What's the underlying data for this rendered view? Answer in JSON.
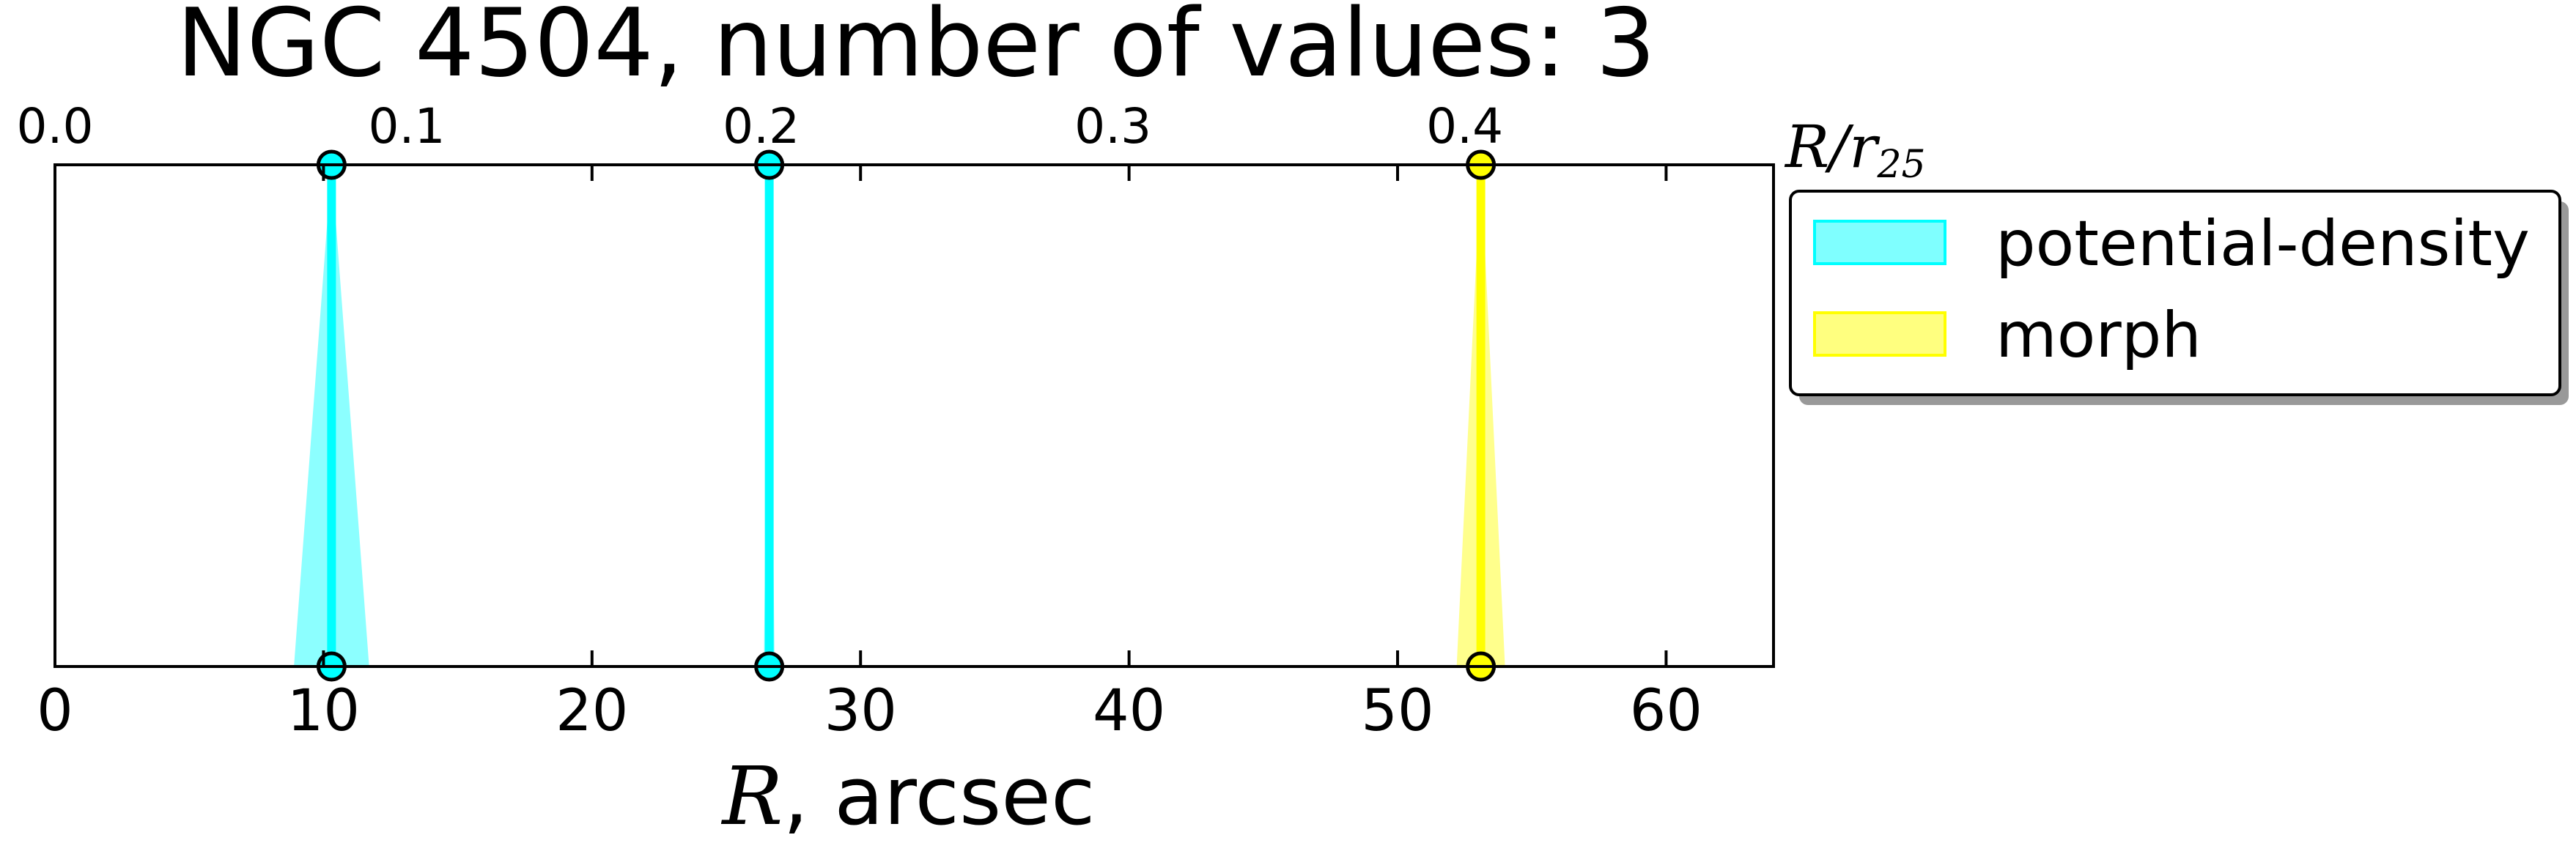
{
  "chart_data": {
    "type": "line",
    "title": "NGC 4504, number of values: 3",
    "xlabel_var": "R",
    "xlabel_unit": ", arcsec",
    "top_axis_label": "R/r",
    "top_axis_label_sub": "25",
    "xlim": [
      0,
      64
    ],
    "xticks": [
      0,
      10,
      20,
      30,
      40,
      50,
      60
    ],
    "top_ticks": [
      {
        "label": "0.0",
        "x": 0
      },
      {
        "label": "0.1",
        "x": 13.1
      },
      {
        "label": "0.2",
        "x": 26.3
      },
      {
        "label": "0.3",
        "x": 39.4
      },
      {
        "label": "0.4",
        "x": 52.5
      }
    ],
    "series": [
      {
        "name": "potential-density",
        "color": "#00ffff",
        "points": [
          {
            "x": 10.3,
            "low": 8.9,
            "high": 11.7
          },
          {
            "x": 26.6,
            "low": 26.4,
            "high": 26.8
          }
        ]
      },
      {
        "name": "morph",
        "color": "#ffff00",
        "points": [
          {
            "x": 53.1,
            "low": 52.2,
            "high": 54.0
          }
        ]
      }
    ],
    "legend_position": "upper-right, outside plot"
  },
  "colors": {
    "cyan": "#00ffff",
    "yellow": "#ffff00",
    "axis": "#000000"
  }
}
